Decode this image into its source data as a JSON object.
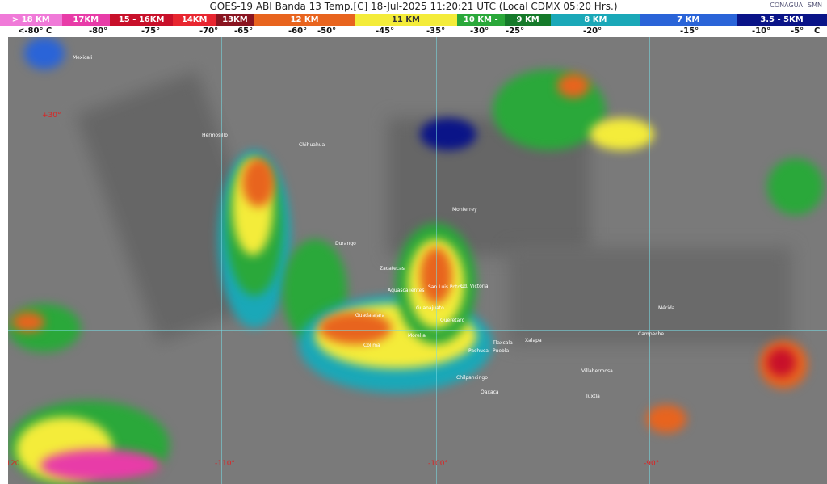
{
  "title": "GOES-19 ABI Banda 13 Temp.[C] 18-Jul-2025 11:20:21 UTC (Local CDMX  05:20 Hrs.)",
  "logos": [
    "CONAGUA",
    "SMN"
  ],
  "scale": [
    {
      "label": "> 18 KM",
      "color": "#f07ad8"
    },
    {
      "label": "17KM",
      "color": "#e83ca8"
    },
    {
      "label": "15 - 16KM",
      "color": "#c8102a"
    },
    {
      "label": "14KM",
      "color": "#e82630"
    },
    {
      "label": "13KM",
      "color": "#8a1420"
    },
    {
      "label": "12 KM",
      "color": "#e8641e"
    },
    {
      "label": "11 KM",
      "color": "#f4ec3a"
    },
    {
      "label": "10 KM - ",
      "color": "#2aa83a"
    },
    {
      "label": "9 KM",
      "color": "#157a2a"
    },
    {
      "label": "8 KM",
      "color": "#1aa8b8"
    },
    {
      "label": "7 KM",
      "color": "#2a64d8"
    },
    {
      "label": "3.5 - 5KM",
      "color": "#0a1488"
    }
  ],
  "temps": [
    "<-80° C",
    "-80°",
    "-75°",
    "-70°",
    "-65°",
    "-60°",
    "-50°",
    "-45°",
    "-35°",
    "-30°",
    "-25°",
    "-20°",
    "-15°",
    "-10°",
    "-5°",
    "C"
  ],
  "grid_labels": {
    "lat30": "+30°",
    "lon120": "-120",
    "lon110": "-110°",
    "lon100": "-100°",
    "lon90": "-90°"
  },
  "cities": [
    "Mexicali",
    "Hermosillo",
    "Chihuahua",
    "Monterrey",
    "Durango",
    "Zacatecas",
    "Cd. Victoria",
    "San Luis Potosí",
    "Aguascalientes",
    "Guanajuato",
    "Querétaro",
    "Guadalajara",
    "Morelia",
    "Colima",
    "Pachuca",
    "Tlaxcala",
    "Puebla",
    "Xalapa",
    "Chilpancingo",
    "Oaxaca",
    "Villahermosa",
    "Campeche",
    "Mérida",
    "Tuxtla"
  ]
}
